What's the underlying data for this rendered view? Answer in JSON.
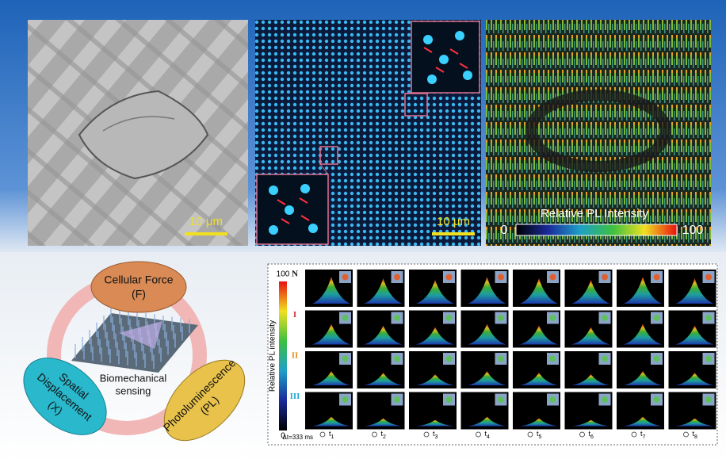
{
  "panels": {
    "brightfield": {
      "scale_bar": "10 μm"
    },
    "pl_map": {
      "scale_bar": "10 μm"
    },
    "intensity_3d": {
      "colorbar": {
        "label": "Relative PL Intensity",
        "min": "0",
        "max": "100"
      }
    }
  },
  "diagram": {
    "nodes": [
      {
        "lines": [
          "Cellular Force",
          "(F)"
        ]
      },
      {
        "lines": [
          "Spatial",
          "Displacement",
          "(X)"
        ]
      },
      {
        "lines": [
          "Photoluminescence",
          "(PL)"
        ]
      }
    ],
    "center": [
      "Biomechanical",
      "sensing"
    ]
  },
  "grid": {
    "colorbar": {
      "label": "Relative PL intensity",
      "max": "100",
      "min": "0"
    },
    "rows": [
      "N",
      "I",
      "II",
      "III"
    ],
    "interval": "Δt=333 ms",
    "times": [
      {
        "base": "t",
        "sub": "1"
      },
      {
        "base": "t",
        "sub": "2"
      },
      {
        "base": "t",
        "sub": "3"
      },
      {
        "base": "t",
        "sub": "4"
      },
      {
        "base": "t",
        "sub": "5"
      },
      {
        "base": "t",
        "sub": "6"
      },
      {
        "base": "t",
        "sub": "7"
      },
      {
        "base": "t",
        "sub": "8"
      }
    ]
  }
}
